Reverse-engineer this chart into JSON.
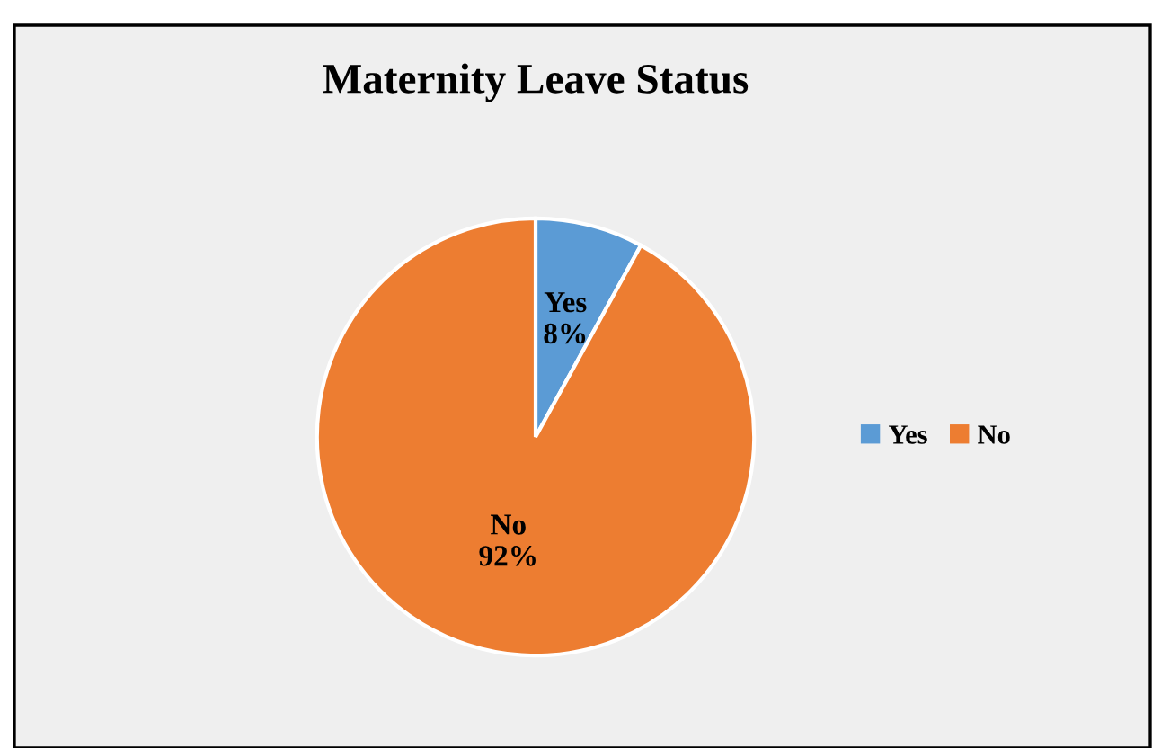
{
  "chart_data": {
    "type": "pie",
    "title": "Maternity Leave Status",
    "categories": [
      "Yes",
      "No"
    ],
    "values": [
      8,
      92
    ],
    "colors": [
      "#5b9bd5",
      "#ed7d31"
    ],
    "value_labels": [
      "8%",
      "92%"
    ],
    "legend": "right"
  }
}
